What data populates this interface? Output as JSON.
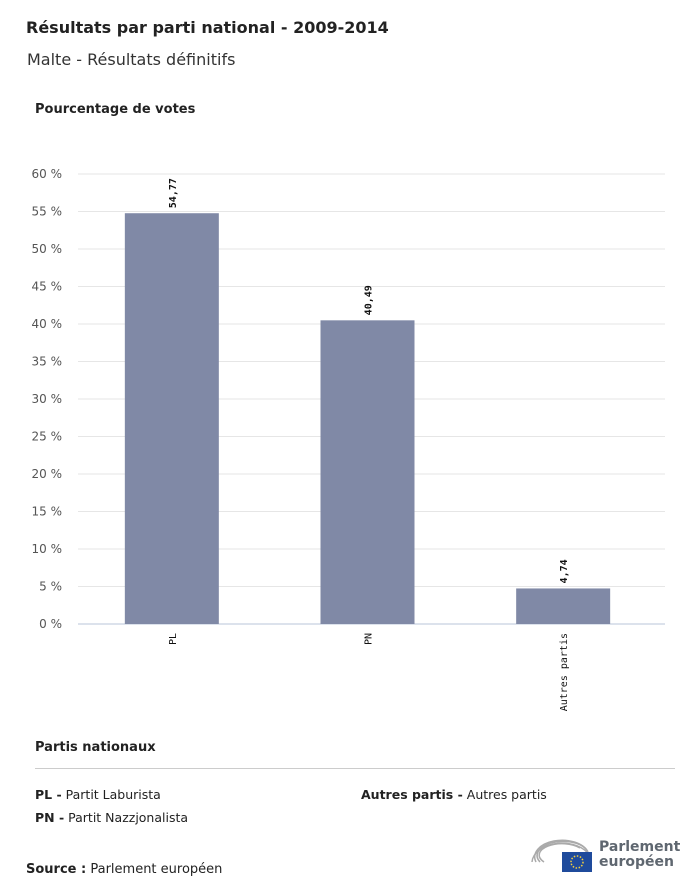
{
  "header": {
    "title": "Résultats par parti national - 2009-2014",
    "subtitle": "Malte - Résultats définitifs"
  },
  "chart_data": {
    "type": "bar",
    "ylabel": "Pourcentage de votes",
    "categories": [
      "PL",
      "PN",
      "Autres partis"
    ],
    "values": [
      54.77,
      40.49,
      4.74
    ],
    "data_labels": [
      "54,77",
      "40,49",
      "4,74"
    ],
    "ylim": [
      0,
      60
    ],
    "yticks": [
      0,
      5,
      10,
      15,
      20,
      25,
      30,
      35,
      40,
      45,
      50,
      55,
      60
    ],
    "ytick_labels": [
      "0 %",
      "5 %",
      "10 %",
      "15 %",
      "20 %",
      "25 %",
      "30 %",
      "35 %",
      "40 %",
      "45 %",
      "50 %",
      "55 %",
      "60 %"
    ],
    "grid": true,
    "bar_color": "#8089a6"
  },
  "legend": {
    "title": "Partis nationaux",
    "items": [
      {
        "abbr": "PL -",
        "name": "Partit Laburista"
      },
      {
        "abbr": "PN -",
        "name": "Partit Nazzjonalista"
      },
      {
        "abbr": "Autres partis -",
        "name": "Autres partis"
      }
    ]
  },
  "footer": {
    "source_label": "Source :",
    "source": "Parlement européen",
    "logo_text_1": "Parlement",
    "logo_text_2": "européen"
  }
}
